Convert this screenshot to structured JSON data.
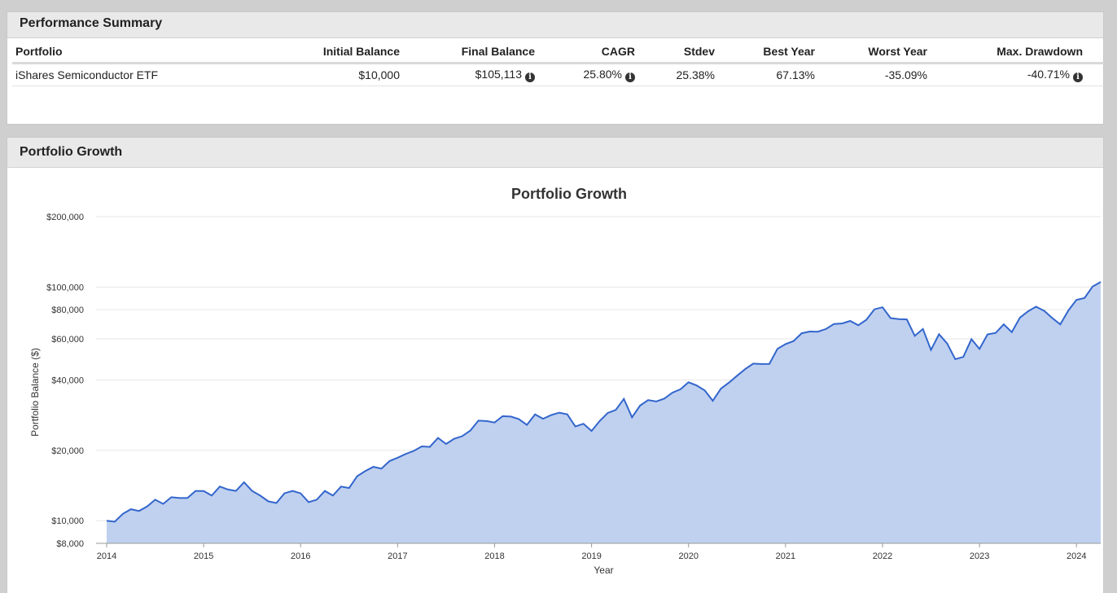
{
  "performance": {
    "title": "Performance Summary",
    "headers": [
      "Portfolio",
      "Initial Balance",
      "Final Balance",
      "CAGR",
      "Stdev",
      "Best Year",
      "Worst Year",
      "Max. Drawdown"
    ],
    "row": {
      "portfolio": "iShares Semiconductor ETF",
      "initial_balance": "$10,000",
      "final_balance": "$105,113",
      "cagr": "25.80%",
      "stdev": "25.38%",
      "best_year": "67.13%",
      "worst_year": "-35.09%",
      "max_drawdown": "-40.71%"
    },
    "info_icon": "info-circle-icon"
  },
  "growth_panel": {
    "title": "Portfolio Growth"
  },
  "chart_data": {
    "type": "area",
    "title": "Portfolio Growth",
    "xlabel": "Year",
    "ylabel": "Portfolio Balance ($)",
    "yscale": "log",
    "ylim": [
      8000,
      200000
    ],
    "xlim": [
      2014.0,
      2024.25
    ],
    "yticks": [
      8000,
      10000,
      20000,
      40000,
      60000,
      80000,
      100000,
      200000
    ],
    "ytick_labels": [
      "$8,000",
      "$10,000",
      "$20,000",
      "$40,000",
      "$60,000",
      "$80,000",
      "$100,000",
      "$200,000"
    ],
    "xticks": [
      "2014",
      "2015",
      "2016",
      "2017",
      "2018",
      "2019",
      "2020",
      "2021",
      "2022",
      "2023",
      "2024"
    ],
    "grid": true,
    "line_color": "#3366cc",
    "fill_color": "#c0d1f0",
    "series": [
      {
        "x": [
          2014.0,
          2014.083,
          2014.167,
          2014.25,
          2014.333,
          2014.417,
          2014.5,
          2014.583,
          2014.667,
          2014.75,
          2014.833,
          2014.917,
          2015.0,
          2015.083,
          2015.167,
          2015.25,
          2015.333,
          2015.417,
          2015.5,
          2015.583,
          2015.667,
          2015.75,
          2015.833,
          2015.917,
          2016.0,
          2016.083,
          2016.167,
          2016.25,
          2016.333,
          2016.417,
          2016.5,
          2016.583,
          2016.667,
          2016.75,
          2016.833,
          2016.917,
          2017.0,
          2017.083,
          2017.167,
          2017.25,
          2017.333,
          2017.417,
          2017.5,
          2017.583,
          2017.667,
          2017.75,
          2017.833,
          2017.917,
          2018.0,
          2018.083,
          2018.167,
          2018.25,
          2018.333,
          2018.417,
          2018.5,
          2018.583,
          2018.667,
          2018.75,
          2018.833,
          2018.917,
          2019.0,
          2019.083,
          2019.167,
          2019.25,
          2019.333,
          2019.417,
          2019.5,
          2019.583,
          2019.667,
          2019.75,
          2019.833,
          2019.917,
          2020.0,
          2020.083,
          2020.167,
          2020.25,
          2020.333,
          2020.417,
          2020.5,
          2020.583,
          2020.667,
          2020.75,
          2020.833,
          2020.917,
          2021.0,
          2021.083,
          2021.167,
          2021.25,
          2021.333,
          2021.417,
          2021.5,
          2021.583,
          2021.667,
          2021.75,
          2021.833,
          2021.917,
          2022.0,
          2022.083,
          2022.167,
          2022.25,
          2022.333,
          2022.417,
          2022.5,
          2022.583,
          2022.667,
          2022.75,
          2022.833,
          2022.917,
          2023.0,
          2023.083,
          2023.167,
          2023.25,
          2023.333,
          2023.417,
          2023.5,
          2023.583,
          2023.667,
          2023.75,
          2023.833,
          2023.917,
          2024.0,
          2024.083,
          2024.167,
          2024.25
        ],
        "y": [
          10000,
          9900,
          10700,
          11200,
          11000,
          11500,
          12300,
          11800,
          12600,
          12500,
          12500,
          13400,
          13400,
          12800,
          14000,
          13600,
          13400,
          14600,
          13400,
          12800,
          12100,
          11900,
          13100,
          13400,
          13100,
          12000,
          12300,
          13400,
          12800,
          14000,
          13800,
          15500,
          16300,
          17000,
          16700,
          18000,
          18600,
          19300,
          19900,
          20800,
          20700,
          22600,
          21300,
          22400,
          23000,
          24300,
          26800,
          26700,
          26300,
          28000,
          27900,
          27200,
          25700,
          28500,
          27300,
          28300,
          29000,
          28500,
          25300,
          26000,
          24200,
          26700,
          28900,
          29800,
          33200,
          27700,
          31100,
          32800,
          32400,
          33300,
          35300,
          36500,
          39100,
          37900,
          36100,
          32600,
          36700,
          39000,
          41700,
          44500,
          47000,
          46800,
          46900,
          54400,
          57000,
          58700,
          63400,
          64500,
          64400,
          66100,
          69500,
          69800,
          71600,
          68600,
          72400,
          80300,
          81900,
          73600,
          72900,
          72700,
          61800,
          66100,
          53800,
          62800,
          57300,
          49100,
          50200,
          59800,
          54300,
          62700,
          63600,
          69200,
          64100,
          74000,
          78700,
          82400,
          79100,
          73700,
          69200,
          79400,
          88100,
          89800,
          100500,
          105113
        ]
      }
    ]
  }
}
